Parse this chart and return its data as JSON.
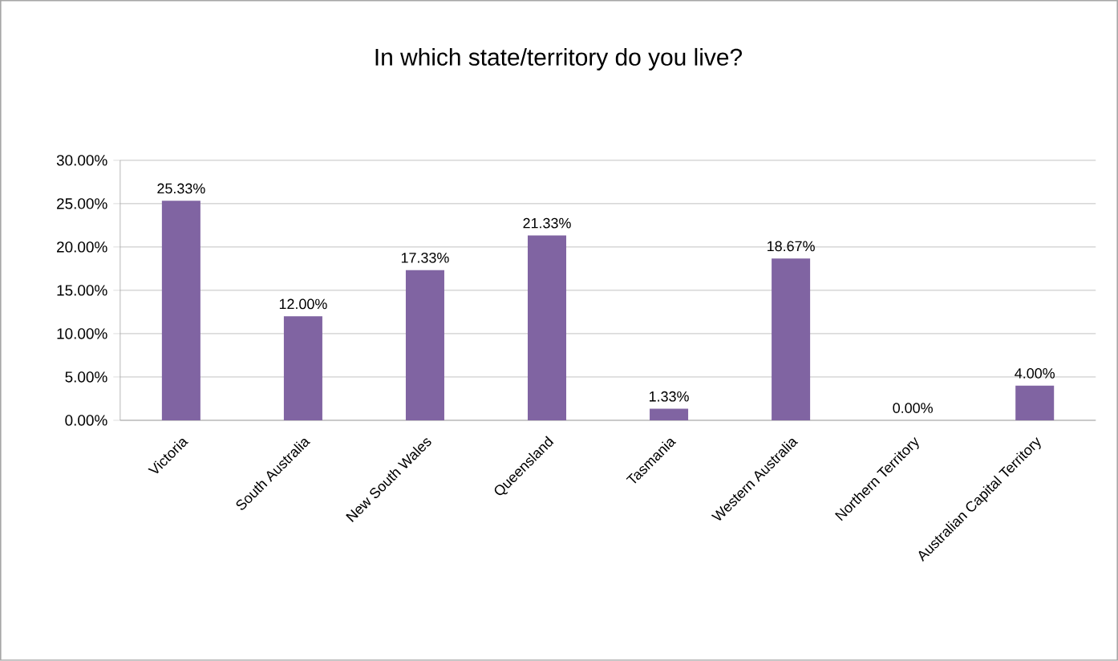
{
  "chart_data": {
    "type": "bar",
    "title": "In which state/territory do you live?",
    "categories": [
      "Victoria",
      "South Australia",
      "New South Wales",
      "Queensland",
      "Tasmania",
      "Western Australia",
      "Northern Territory",
      "Australian Capital Territory"
    ],
    "values": [
      25.33,
      12.0,
      17.33,
      21.33,
      1.33,
      18.67,
      0.0,
      4.0
    ],
    "value_labels": [
      "25.33%",
      "12.00%",
      "17.33%",
      "21.33%",
      "1.33%",
      "18.67%",
      "0.00%",
      "4.00%"
    ],
    "color": "#8064a2",
    "ylim": [
      0,
      30
    ],
    "yticks": [
      {
        "value": 0,
        "label": "0.00%"
      },
      {
        "value": 5,
        "label": "5.00%"
      },
      {
        "value": 10,
        "label": "10.00%"
      },
      {
        "value": 15,
        "label": "15.00%"
      },
      {
        "value": 20,
        "label": "20.00%"
      },
      {
        "value": 25,
        "label": "25.00%"
      },
      {
        "value": 30,
        "label": "30.00%"
      }
    ],
    "grid": "y"
  }
}
